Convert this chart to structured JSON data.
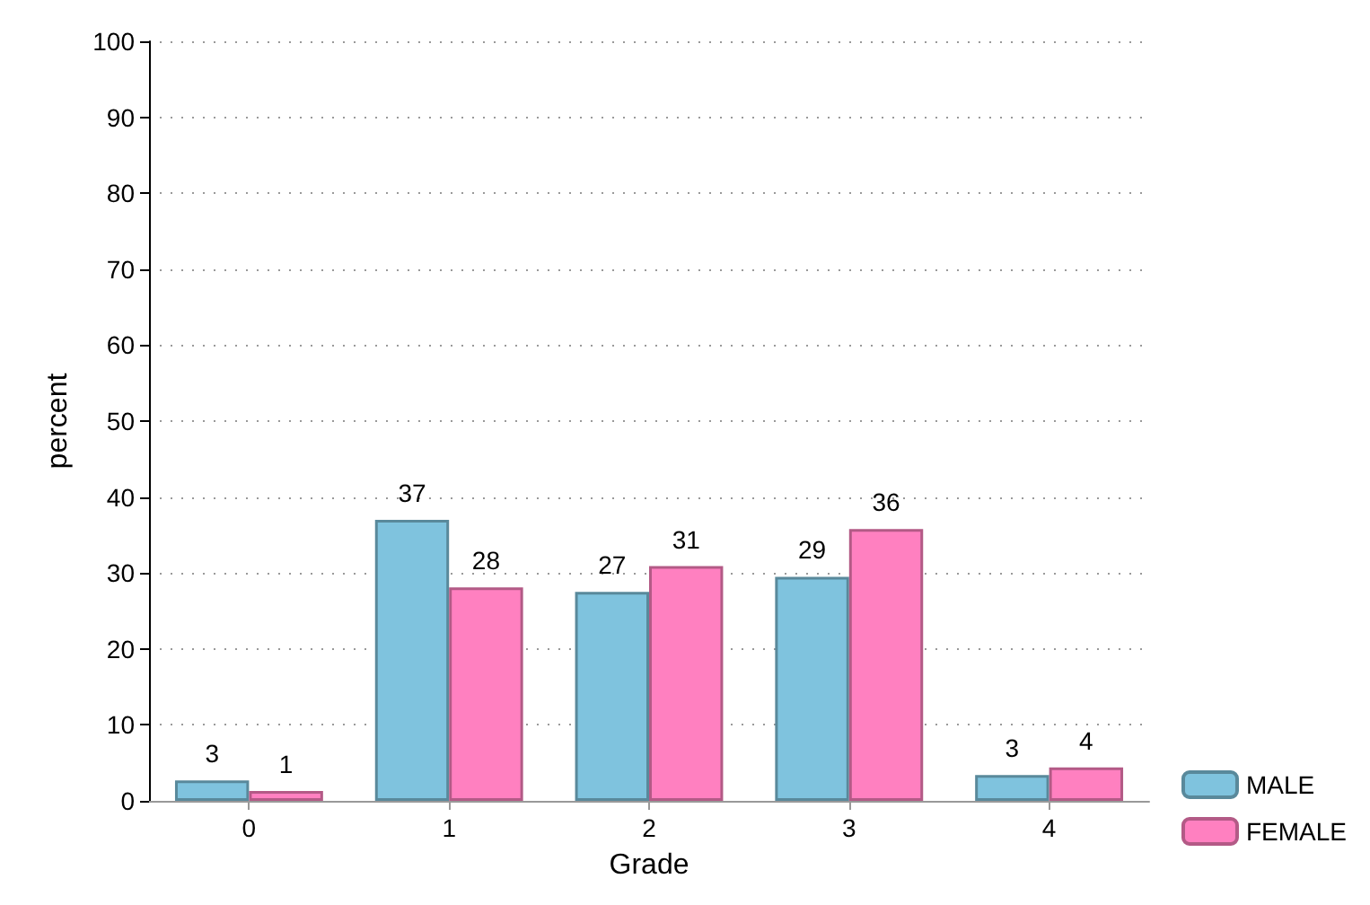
{
  "chart_data": {
    "type": "bar",
    "xlabel": "Grade",
    "ylabel": "percent",
    "categories": [
      "0",
      "1",
      "2",
      "3",
      "4"
    ],
    "series": [
      {
        "name": "MALE",
        "color": "#7fc3de",
        "values": [
          2.7,
          37.0,
          27.5,
          29.5,
          3.4
        ],
        "value_labels": [
          "3",
          "37",
          "27",
          "29",
          "3"
        ]
      },
      {
        "name": "FEMALE",
        "color": "#ff80c0",
        "values": [
          1.3,
          28.1,
          30.9,
          35.8,
          4.4
        ],
        "value_labels": [
          "1",
          "28",
          "31",
          "36",
          "4"
        ]
      }
    ],
    "ylim": [
      0,
      100
    ],
    "yticks": [
      0,
      10,
      20,
      30,
      40,
      50,
      60,
      70,
      80,
      90,
      100
    ],
    "grid": "y",
    "legend": "bottom right"
  }
}
